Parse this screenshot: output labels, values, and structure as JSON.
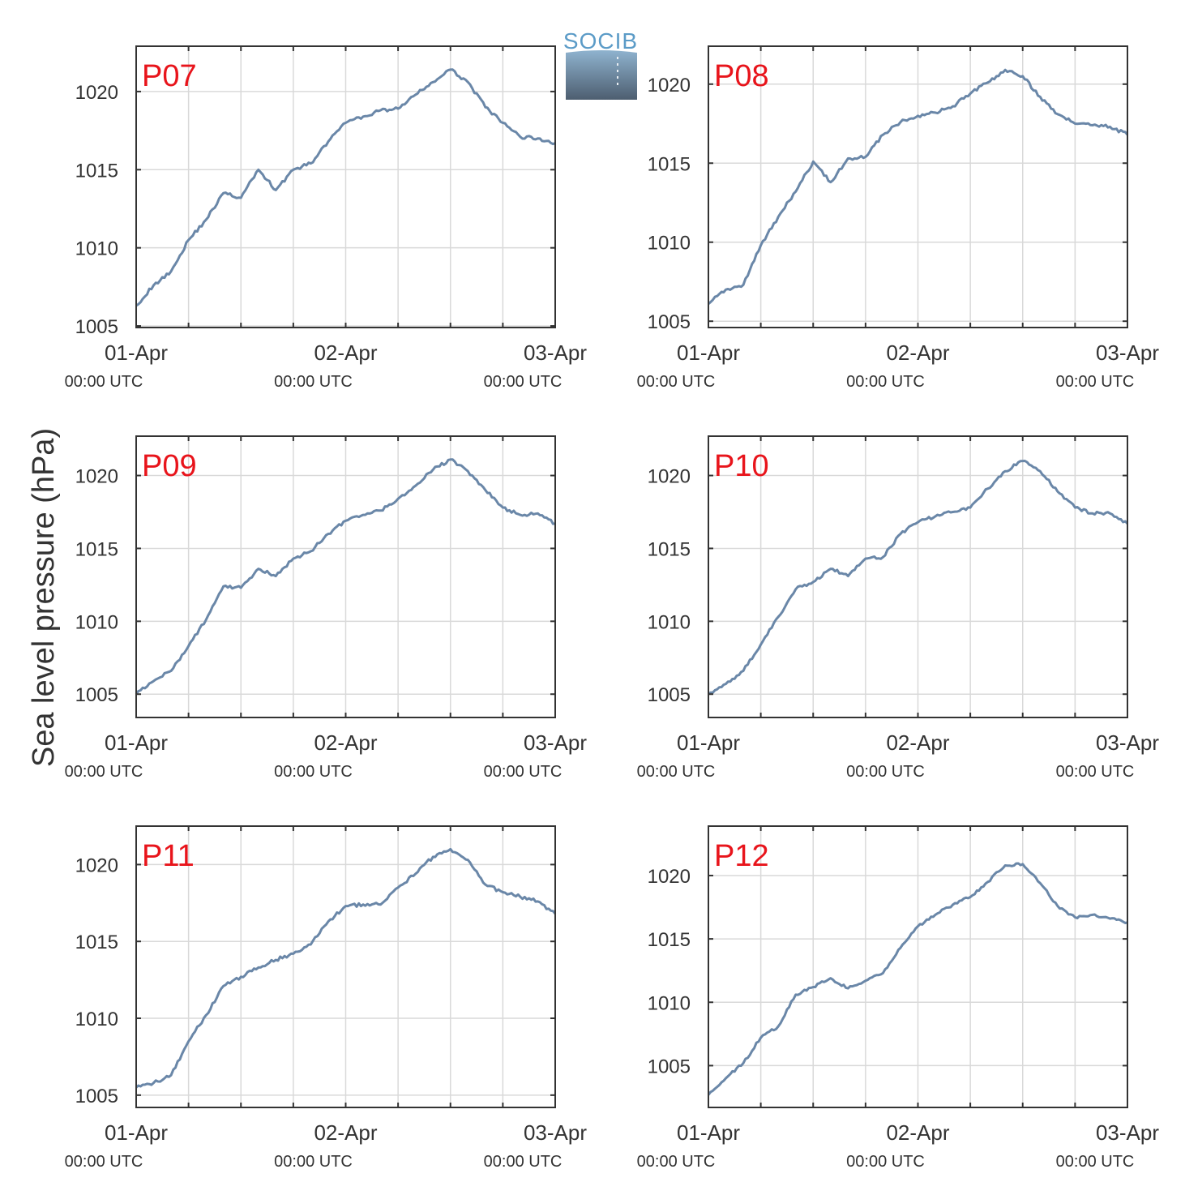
{
  "figure": {
    "ylabel": "Sea level pressure (hPa)",
    "logo_text": "SOCIB",
    "colors": {
      "line": "#6a87a8",
      "station_label": "#e8141b",
      "grid": "#d9d9d9",
      "axis": "#333333",
      "text": "#333333"
    }
  },
  "chart_data": [
    {
      "type": "line",
      "title": "P07",
      "x_ticks": [
        {
          "date": "01-Apr",
          "time": "00:00 UTC"
        },
        {
          "date": "02-Apr",
          "time": "00:00 UTC"
        },
        {
          "date": "03-Apr",
          "time": "00:00 UTC"
        }
      ],
      "xlim": [
        "01-Apr 00:00",
        "03-Apr 00:00"
      ],
      "ylim": [
        1004.9,
        1022.9
      ],
      "y_ticks": [
        1005,
        1010,
        1015,
        1020
      ],
      "series": [
        {
          "x": [
            "01-Apr 00:00",
            "01-Apr 02:00",
            "01-Apr 04:00",
            "01-Apr 06:00",
            "01-Apr 08:00",
            "01-Apr 10:00",
            "01-Apr 12:00",
            "01-Apr 14:00",
            "01-Apr 16:00",
            "01-Apr 18:00",
            "01-Apr 20:00",
            "01-Apr 22:00",
            "02-Apr 00:00",
            "02-Apr 02:00",
            "02-Apr 04:00",
            "02-Apr 06:00",
            "02-Apr 08:00",
            "02-Apr 10:00",
            "02-Apr 12:00",
            "02-Apr 14:00",
            "02-Apr 16:00",
            "02-Apr 18:00",
            "02-Apr 20:00",
            "02-Apr 22:00",
            "03-Apr 00:00"
          ],
          "values": [
            1006.3,
            1007.6,
            1008.5,
            1010.5,
            1011.8,
            1013.5,
            1013.2,
            1015.0,
            1013.7,
            1015.0,
            1015.4,
            1016.8,
            1018.0,
            1018.4,
            1018.8,
            1018.9,
            1019.8,
            1020.6,
            1021.4,
            1020.6,
            1019.0,
            1018.0,
            1017.1,
            1017.0,
            1016.7
          ]
        }
      ]
    },
    {
      "type": "line",
      "title": "P08",
      "x_ticks": [
        {
          "date": "01-Apr",
          "time": "00:00 UTC"
        },
        {
          "date": "02-Apr",
          "time": "00:00 UTC"
        },
        {
          "date": "03-Apr",
          "time": "00:00 UTC"
        }
      ],
      "xlim": [
        "01-Apr 00:00",
        "03-Apr 00:00"
      ],
      "ylim": [
        1004.6,
        1022.4
      ],
      "y_ticks": [
        1005,
        1010,
        1015,
        1020
      ],
      "series": [
        {
          "x": [
            "01-Apr 00:00",
            "01-Apr 02:00",
            "01-Apr 04:00",
            "01-Apr 06:00",
            "01-Apr 08:00",
            "01-Apr 10:00",
            "01-Apr 12:00",
            "01-Apr 14:00",
            "01-Apr 16:00",
            "01-Apr 18:00",
            "01-Apr 20:00",
            "01-Apr 22:00",
            "02-Apr 00:00",
            "02-Apr 02:00",
            "02-Apr 04:00",
            "02-Apr 06:00",
            "02-Apr 08:00",
            "02-Apr 10:00",
            "02-Apr 12:00",
            "02-Apr 14:00",
            "02-Apr 16:00",
            "02-Apr 18:00",
            "02-Apr 20:00",
            "02-Apr 22:00",
            "03-Apr 00:00"
          ],
          "values": [
            1006.1,
            1007.0,
            1007.3,
            1009.8,
            1011.6,
            1013.2,
            1015.1,
            1013.8,
            1015.3,
            1015.4,
            1016.8,
            1017.6,
            1018.0,
            1018.2,
            1018.6,
            1019.4,
            1020.1,
            1020.9,
            1020.5,
            1019.2,
            1018.1,
            1017.5,
            1017.4,
            1017.3,
            1016.8
          ]
        }
      ]
    },
    {
      "type": "line",
      "title": "P09",
      "x_ticks": [
        {
          "date": "01-Apr",
          "time": "00:00 UTC"
        },
        {
          "date": "02-Apr",
          "time": "00:00 UTC"
        },
        {
          "date": "03-Apr",
          "time": "00:00 UTC"
        }
      ],
      "xlim": [
        "01-Apr 00:00",
        "03-Apr 00:00"
      ],
      "ylim": [
        1003.4,
        1022.7
      ],
      "y_ticks": [
        1005,
        1010,
        1015,
        1020
      ],
      "series": [
        {
          "x": [
            "01-Apr 00:00",
            "01-Apr 02:00",
            "01-Apr 04:00",
            "01-Apr 06:00",
            "01-Apr 08:00",
            "01-Apr 10:00",
            "01-Apr 12:00",
            "01-Apr 14:00",
            "01-Apr 16:00",
            "01-Apr 18:00",
            "01-Apr 20:00",
            "01-Apr 22:00",
            "02-Apr 00:00",
            "02-Apr 02:00",
            "02-Apr 04:00",
            "02-Apr 06:00",
            "02-Apr 08:00",
            "02-Apr 10:00",
            "02-Apr 12:00",
            "02-Apr 14:00",
            "02-Apr 16:00",
            "02-Apr 18:00",
            "02-Apr 20:00",
            "02-Apr 22:00",
            "03-Apr 00:00"
          ],
          "values": [
            1005.0,
            1005.9,
            1006.6,
            1008.3,
            1010.1,
            1012.4,
            1012.3,
            1013.6,
            1013.1,
            1014.3,
            1014.8,
            1016.0,
            1016.9,
            1017.3,
            1017.6,
            1018.4,
            1019.3,
            1020.4,
            1021.1,
            1020.3,
            1019.0,
            1017.8,
            1017.3,
            1017.4,
            1016.7
          ]
        }
      ]
    },
    {
      "type": "line",
      "title": "P10",
      "x_ticks": [
        {
          "date": "01-Apr",
          "time": "00:00 UTC"
        },
        {
          "date": "02-Apr",
          "time": "00:00 UTC"
        },
        {
          "date": "03-Apr",
          "time": "00:00 UTC"
        }
      ],
      "xlim": [
        "01-Apr 00:00",
        "03-Apr 00:00"
      ],
      "ylim": [
        1003.4,
        1022.7
      ],
      "y_ticks": [
        1005,
        1010,
        1015,
        1020
      ],
      "series": [
        {
          "x": [
            "01-Apr 00:00",
            "01-Apr 02:00",
            "01-Apr 04:00",
            "01-Apr 06:00",
            "01-Apr 08:00",
            "01-Apr 10:00",
            "01-Apr 12:00",
            "01-Apr 14:00",
            "01-Apr 16:00",
            "01-Apr 18:00",
            "01-Apr 20:00",
            "01-Apr 22:00",
            "02-Apr 00:00",
            "02-Apr 02:00",
            "02-Apr 04:00",
            "02-Apr 06:00",
            "02-Apr 08:00",
            "02-Apr 10:00",
            "02-Apr 12:00",
            "02-Apr 14:00",
            "02-Apr 16:00",
            "02-Apr 18:00",
            "02-Apr 20:00",
            "02-Apr 22:00",
            "03-Apr 00:00"
          ],
          "values": [
            1005.0,
            1005.7,
            1006.6,
            1008.4,
            1010.3,
            1012.2,
            1012.7,
            1013.6,
            1013.1,
            1014.3,
            1014.4,
            1016.0,
            1016.8,
            1017.2,
            1017.5,
            1017.8,
            1019.1,
            1020.3,
            1021.0,
            1020.3,
            1018.9,
            1017.8,
            1017.4,
            1017.4,
            1016.7
          ]
        }
      ]
    },
    {
      "type": "line",
      "title": "P11",
      "x_ticks": [
        {
          "date": "01-Apr",
          "time": "00:00 UTC"
        },
        {
          "date": "02-Apr",
          "time": "00:00 UTC"
        },
        {
          "date": "03-Apr",
          "time": "00:00 UTC"
        }
      ],
      "xlim": [
        "01-Apr 00:00",
        "03-Apr 00:00"
      ],
      "ylim": [
        1004.2,
        1022.5
      ],
      "y_ticks": [
        1005,
        1010,
        1015,
        1020
      ],
      "series": [
        {
          "x": [
            "01-Apr 00:00",
            "01-Apr 02:00",
            "01-Apr 04:00",
            "01-Apr 06:00",
            "01-Apr 08:00",
            "01-Apr 10:00",
            "01-Apr 12:00",
            "01-Apr 14:00",
            "01-Apr 16:00",
            "01-Apr 18:00",
            "01-Apr 20:00",
            "01-Apr 22:00",
            "02-Apr 00:00",
            "02-Apr 02:00",
            "02-Apr 04:00",
            "02-Apr 06:00",
            "02-Apr 08:00",
            "02-Apr 10:00",
            "02-Apr 12:00",
            "02-Apr 14:00",
            "02-Apr 16:00",
            "02-Apr 18:00",
            "02-Apr 20:00",
            "02-Apr 22:00",
            "03-Apr 00:00"
          ],
          "values": [
            1005.5,
            1005.8,
            1006.3,
            1008.5,
            1010.2,
            1012.1,
            1012.7,
            1013.3,
            1013.8,
            1014.2,
            1014.8,
            1016.3,
            1017.3,
            1017.4,
            1017.4,
            1018.5,
            1019.4,
            1020.5,
            1021.0,
            1020.3,
            1018.7,
            1018.2,
            1017.9,
            1017.6,
            1016.8
          ]
        }
      ]
    },
    {
      "type": "line",
      "title": "P12",
      "x_ticks": [
        {
          "date": "01-Apr",
          "time": "00:00 UTC"
        },
        {
          "date": "02-Apr",
          "time": "00:00 UTC"
        },
        {
          "date": "03-Apr",
          "time": "00:00 UTC"
        }
      ],
      "xlim": [
        "01-Apr 00:00",
        "03-Apr 00:00"
      ],
      "ylim": [
        1001.7,
        1023.9
      ],
      "y_ticks": [
        1005,
        1010,
        1015,
        1020
      ],
      "series": [
        {
          "x": [
            "01-Apr 00:00",
            "01-Apr 02:00",
            "01-Apr 04:00",
            "01-Apr 06:00",
            "01-Apr 08:00",
            "01-Apr 10:00",
            "01-Apr 12:00",
            "01-Apr 14:00",
            "01-Apr 16:00",
            "01-Apr 18:00",
            "01-Apr 20:00",
            "01-Apr 22:00",
            "02-Apr 00:00",
            "02-Apr 02:00",
            "02-Apr 04:00",
            "02-Apr 06:00",
            "02-Apr 08:00",
            "02-Apr 10:00",
            "02-Apr 12:00",
            "02-Apr 14:00",
            "02-Apr 16:00",
            "02-Apr 18:00",
            "02-Apr 20:00",
            "02-Apr 22:00",
            "03-Apr 00:00"
          ],
          "values": [
            1002.7,
            1004.0,
            1005.2,
            1007.2,
            1008.1,
            1010.6,
            1011.2,
            1011.9,
            1011.1,
            1011.7,
            1012.3,
            1014.3,
            1016.0,
            1016.9,
            1017.7,
            1018.3,
            1019.5,
            1020.8,
            1020.9,
            1019.4,
            1017.6,
            1016.7,
            1016.9,
            1016.6,
            1016.3
          ]
        }
      ]
    }
  ]
}
